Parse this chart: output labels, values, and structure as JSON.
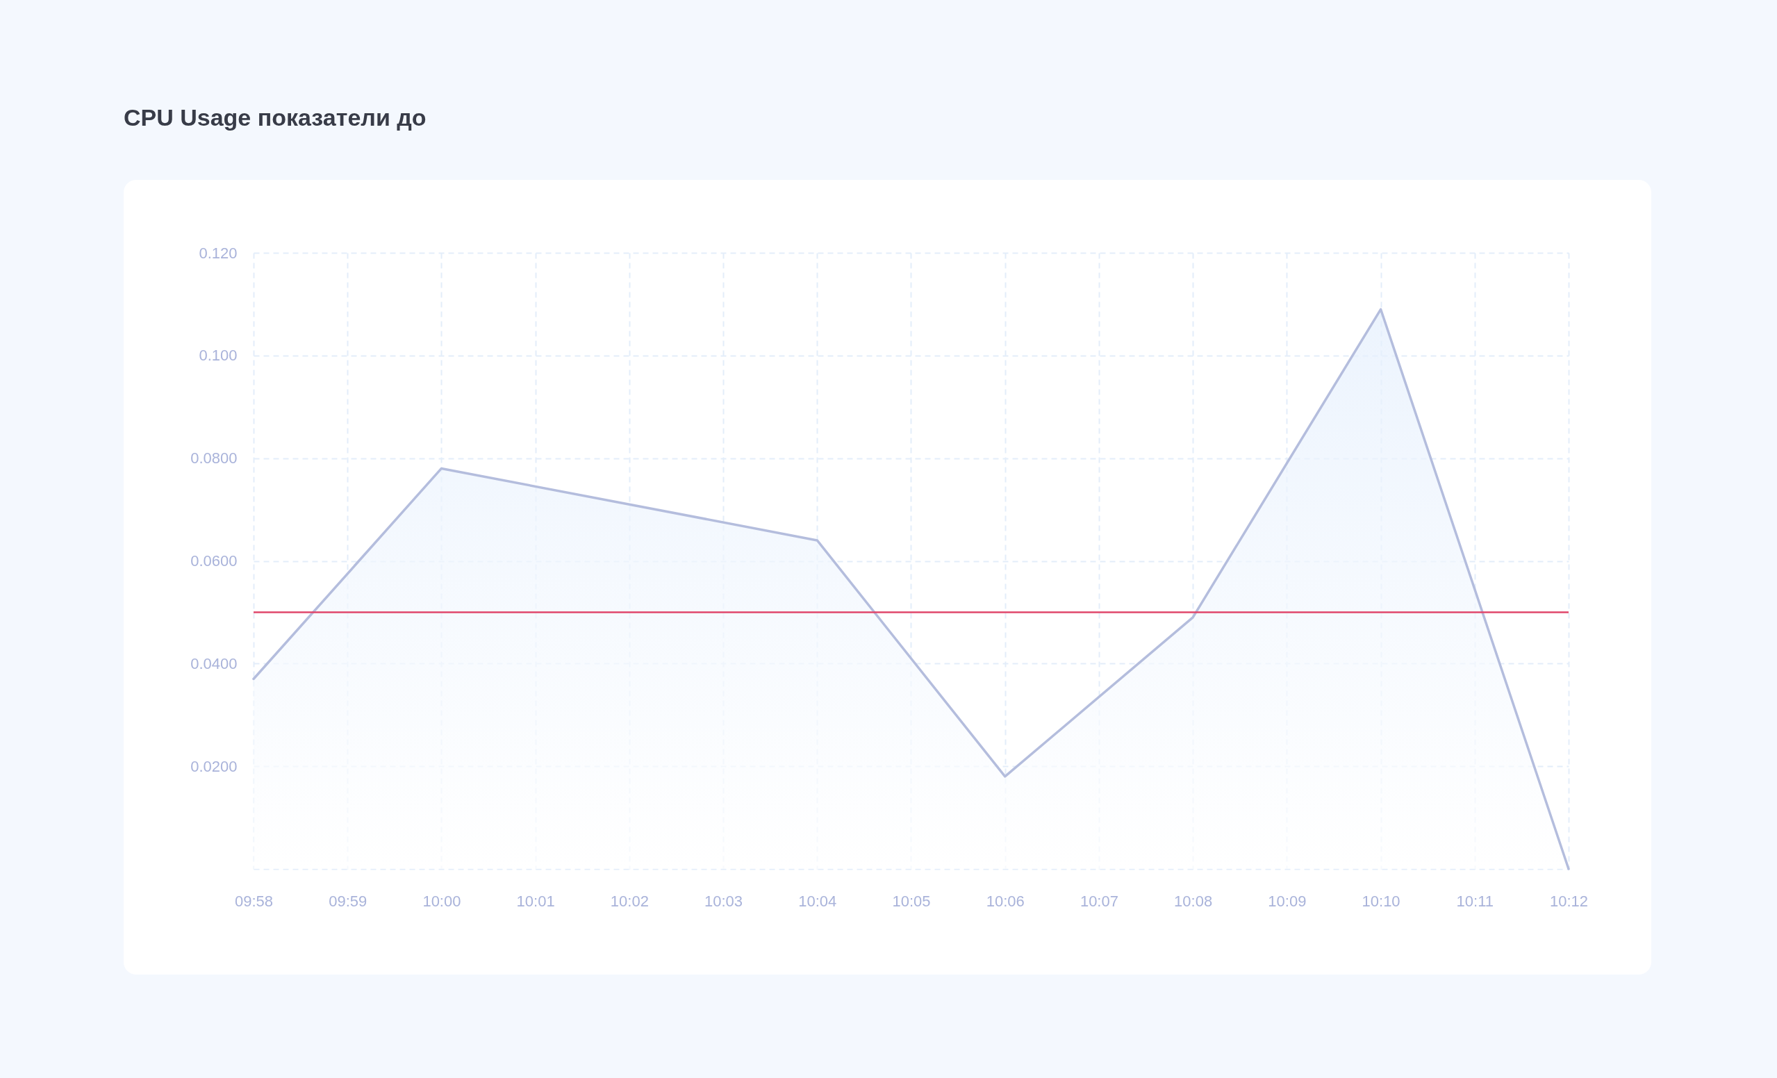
{
  "chart_data": {
    "type": "area",
    "title": "CPU Usage показатели до",
    "x": [
      9.966667,
      10,
      10.066667,
      10.1,
      10.133333,
      10.166667,
      10.2
    ],
    "values": [
      0.037,
      0.078,
      0.064,
      0.018,
      0.049,
      0.109,
      0
    ],
    "color": "#b4bddd",
    "xlim": [
      9.966667,
      10.2
    ],
    "xticks": [
      {
        "value": 9.966667,
        "label": "09:58"
      },
      {
        "value": 9.983333,
        "label": "09:59"
      },
      {
        "value": 10,
        "label": "10:00"
      },
      {
        "value": 10.016667,
        "label": "10:01"
      },
      {
        "value": 10.033333,
        "label": "10:02"
      },
      {
        "value": 10.05,
        "label": "10:03"
      },
      {
        "value": 10.066667,
        "label": "10:04"
      },
      {
        "value": 10.083333,
        "label": "10:05"
      },
      {
        "value": 10.1,
        "label": "10:06"
      },
      {
        "value": 10.116667,
        "label": "10:07"
      },
      {
        "value": 10.133333,
        "label": "10:08"
      },
      {
        "value": 10.15,
        "label": "10:09"
      },
      {
        "value": 10.166667,
        "label": "10:10"
      },
      {
        "value": 10.183333,
        "label": "10:11"
      },
      {
        "value": 10.2,
        "label": "10:12"
      }
    ],
    "ylim": [
      0,
      0.12
    ],
    "yticks": [
      {
        "value": 0,
        "label": null
      },
      {
        "value": 0.02,
        "label": "0.0200"
      },
      {
        "value": 0.04,
        "label": "0.0400"
      },
      {
        "value": 0.06,
        "label": "0.0600"
      },
      {
        "value": 0.08,
        "label": "0.0800"
      },
      {
        "value": 0.1,
        "label": "0.100"
      },
      {
        "value": 0.12,
        "label": "0.120"
      }
    ],
    "ref_lines": [
      {
        "axis": "y",
        "value": 0.05,
        "color": "#e0476b"
      }
    ],
    "grid": true
  }
}
